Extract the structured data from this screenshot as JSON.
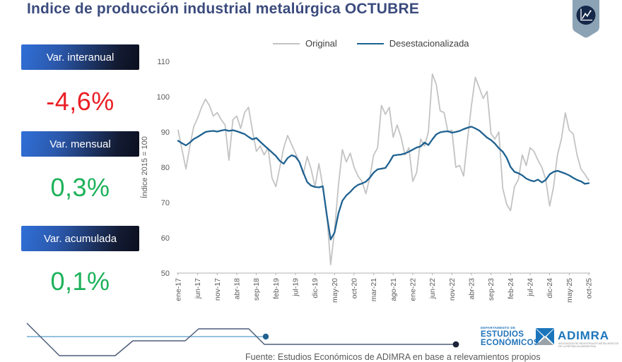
{
  "title": "Indice de producción industrial metalúrgica OCTUBRE",
  "badge": {
    "icon": "line-chart-badge"
  },
  "stats": [
    {
      "label": "Var. interanual",
      "value": "-4,6%",
      "color": "#ea1d25"
    },
    {
      "label": "Var. mensual",
      "value": "0,3%",
      "color": "#1db25a"
    },
    {
      "label": "Var. acumulada",
      "value": "0,1%",
      "color": "#1db25a"
    }
  ],
  "chart_data": {
    "type": "line",
    "title": "",
    "xlabel": "",
    "ylabel": "Índice 2015 = 100",
    "ylim": [
      50,
      110
    ],
    "yticks": [
      50,
      60,
      70,
      80,
      90,
      100,
      110
    ],
    "grid": false,
    "legend_position": "top",
    "x_tick_step": 5,
    "x_tick_labels": [
      "ene-17",
      "jun-17",
      "nov-17",
      "abr-18",
      "sep-18",
      "feb-19",
      "jul-19",
      "dic-19",
      "may-20",
      "oct-20",
      "mar-21",
      "ago-21",
      "ene-22",
      "jun-22",
      "nov-22",
      "abr-23",
      "sep-23",
      "feb-24",
      "jul-24",
      "dic-24",
      "may-25",
      "oct-25"
    ],
    "x_range_note": "monthly points ene-17 through oct-25",
    "series": [
      {
        "name": "Original",
        "color": "#c3c3c3",
        "values": [
          90.5,
          85,
          79.5,
          86,
          91.5,
          94,
          97,
          99.3,
          97.5,
          94.5,
          95.5,
          93.5,
          92,
          82,
          93.5,
          94.5,
          91,
          95.5,
          97,
          90.5,
          84.5,
          86,
          83.5,
          85.5,
          77,
          74.5,
          80,
          85.5,
          89,
          86.5,
          84,
          81.5,
          78,
          83,
          79.5,
          74.5,
          81,
          74.5,
          67,
          52.4,
          62,
          75,
          85,
          81.5,
          84,
          80,
          77.5,
          76,
          72.5,
          77,
          83.5,
          85.5,
          97.5,
          95,
          97,
          88.5,
          92,
          88.5,
          83.5,
          85.5,
          76,
          78.5,
          88,
          86,
          90,
          106.4,
          103.5,
          96,
          95.5,
          90,
          90.5,
          80,
          80.5,
          77.5,
          88,
          97.5,
          105.5,
          102.5,
          99.5,
          101.5,
          89.5,
          88,
          90,
          74,
          69.5,
          67.7,
          74.5,
          76.5,
          83.5,
          80.5,
          85.5,
          84.5,
          82,
          80,
          76.5,
          69,
          74.5,
          83.5,
          88,
          95.4,
          90.5,
          89.5,
          83.5,
          79.5,
          78,
          76.3
        ]
      },
      {
        "name": "Desestacionalizada",
        "color": "#1f6291",
        "values": [
          87.5,
          86.8,
          86.2,
          87,
          88,
          88.6,
          89.3,
          90,
          90.2,
          90.3,
          90.1,
          90.4,
          90.6,
          90.3,
          90.5,
          90.2,
          89.8,
          89.4,
          88.6,
          87.9,
          88.3,
          87.2,
          86.2,
          85.2,
          84.2,
          83.2,
          81.8,
          81,
          82.6,
          83.4,
          83,
          81.5,
          78.5,
          75.8,
          74.8,
          74.4,
          74.3,
          74.6,
          66.5,
          59.5,
          61.5,
          67,
          70.5,
          72,
          73,
          74.2,
          75,
          75.4,
          75.9,
          77,
          78.5,
          79.4,
          79.6,
          79.8,
          81.4,
          83.3,
          83.5,
          83.6,
          83.9,
          84.4,
          85,
          85.6,
          85.9,
          87,
          86.3,
          87.9,
          89.3,
          89.9,
          90.1,
          90.2,
          89.8,
          90,
          90.3,
          90.8,
          91.2,
          91.5,
          91,
          90.4,
          89.4,
          88.4,
          87.7,
          86.7,
          85.4,
          84.4,
          82.7,
          80.1,
          78.7,
          78.3,
          77.7,
          76.8,
          76.3,
          76,
          76.5,
          75.7,
          76.4,
          78,
          78.7,
          79,
          78.6,
          78.2,
          77.7,
          77,
          76.4,
          76,
          75.3,
          75.5
        ]
      }
    ]
  },
  "footer": {
    "dept_small": "DEPARTAMENTO DE",
    "dept_line1": "ESTUDIOS",
    "dept_line2": "ECONÓMICOS",
    "adimra": "ADIMRA",
    "adimra_tagline": "ASOCIACIÓN DE INDUSTRIALES METALÚRGICOS DE LA REPÚBLICA ARGENTINA",
    "source": "Fuente: Estudios Económicos de ADIMRA en base a relevamientos propios"
  },
  "colors": {
    "title": "#3b4b7d",
    "negative": "#ea1d25",
    "positive": "#1db25a",
    "axis_text": "#595959",
    "axis_line": "#b0b0b0",
    "footer_blue": "#2173b9",
    "adimra_blue": "#1b75bb",
    "adimra_gray": "#9aa2a9",
    "badge_body": "#8ca3b6",
    "badge_circle": "#15284a",
    "decor_dark": "#4d5d7a",
    "decor_light": "#74aed6",
    "box_gradient_start": "#3070d8",
    "box_gradient_end": "#0b0f1e"
  }
}
